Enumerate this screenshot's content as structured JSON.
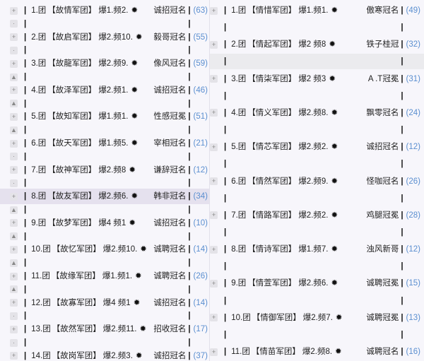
{
  "separator": "|",
  "star_icon": "✹",
  "left_panel": {
    "rows": [
      {
        "rank": "1.团",
        "name": "【故情军团】",
        "stats": "爆1.频2.",
        "title": "诚招冠名",
        "count": "(63)",
        "gap_icon": "dot"
      },
      {
        "rank": "2.团",
        "name": "【故启军团】",
        "stats": "爆2.频10.",
        "title": "毅哥冠名",
        "count": "(55)",
        "gap_icon": "dot"
      },
      {
        "rank": "3.团",
        "name": "【故龍军团】",
        "stats": "爆2.频9.",
        "title": "像风冠名",
        "count": "(59)",
        "gap_icon": "lock"
      },
      {
        "rank": "4.团",
        "name": "【故泽军团】",
        "stats": "爆2.频1.",
        "title": "诚招冠名",
        "count": "(46)",
        "gap_icon": "lock"
      },
      {
        "rank": "5.团",
        "name": "【故知军团】",
        "stats": "爆1.频1.",
        "title": "性感冠冕",
        "count": "(51)",
        "gap_icon": "lock"
      },
      {
        "rank": "6.团",
        "name": "【故天军团】",
        "stats": "爆1.频5.",
        "title": "宰相冠名",
        "count": "(21)",
        "gap_icon": "dot"
      },
      {
        "rank": "7.团",
        "name": "【故神军团】",
        "stats": "爆2.频8",
        "title": "谦辞冠名",
        "count": "(12)",
        "gap_icon": "dot"
      },
      {
        "rank": "8.团",
        "name": "【故友军团】",
        "stats": "爆2.频6.",
        "title": "韩非冠名",
        "count": "(34)",
        "gap_icon": "lock",
        "highlighted": true
      },
      {
        "rank": "9.团",
        "name": "【故梦军团】",
        "stats": "爆4 频1",
        "title": "诚招冠名",
        "count": "(10)",
        "gap_icon": "lock"
      },
      {
        "rank": "10.团",
        "name": "【故忆军团】",
        "stats": "爆2.频10.",
        "title": "诚聘冠名",
        "count": "(14)",
        "gap_icon": "lock"
      },
      {
        "rank": "11.团",
        "name": "【故缘军团】",
        "stats": "爆1.频1.",
        "title": "诚聘冠名",
        "count": "(26)",
        "gap_icon": "lock"
      },
      {
        "rank": "12.团",
        "name": "【故寡军团】",
        "stats": "爆4 频1",
        "title": "诚招冠名",
        "count": "(14)",
        "gap_icon": "dot"
      },
      {
        "rank": "13.团",
        "name": "【故然军团】",
        "stats": "爆2.频11.",
        "title": "招收冠名",
        "count": "(17)",
        "gap_icon": "dot"
      },
      {
        "rank": "14.团",
        "name": "【故岗军团】",
        "stats": "爆2.频3.",
        "title": "诚招冠名",
        "count": "(37)",
        "gap_icon": ""
      }
    ]
  },
  "right_panel": {
    "rows": [
      {
        "rank": "1.团",
        "name": "【情惜军团】",
        "stats": "爆1.频1.",
        "title": "傲寒冠名",
        "count": "(49)"
      },
      {
        "rank": "2.团",
        "name": "【情起军团】",
        "stats": "爆2 频8",
        "title": "铁子桂冠",
        "count": "(32)",
        "gap_highlighted": true
      },
      {
        "rank": "3.团",
        "name": "【情柒军团】",
        "stats": "爆2 频3",
        "title": "A .T冠冕",
        "count": "(31)"
      },
      {
        "rank": "4.团",
        "name": "【情义军团】",
        "stats": "爆2.频8.",
        "title": "飘零冠名",
        "count": "(24)"
      },
      {
        "rank": "5.团",
        "name": "【情芯军团】",
        "stats": "爆2.频2.",
        "title": "诚招冠名",
        "count": "(12)"
      },
      {
        "rank": "6.团",
        "name": "【情然军团】",
        "stats": "爆2.频9.",
        "title": "怪咖冠名",
        "count": "(26)"
      },
      {
        "rank": "7.团",
        "name": "【情路军团】",
        "stats": "爆2.频2.",
        "title": "鸡腿冠冕",
        "count": "(28)"
      },
      {
        "rank": "8.团",
        "name": "【情诗军团】",
        "stats": "爆1.频7.",
        "title": "浊风新哥",
        "count": "(12)"
      },
      {
        "rank": "9.团",
        "name": "【情萱军团】",
        "stats": "爆2.频6.",
        "title": "诚聘冠冕",
        "count": "(15)"
      },
      {
        "rank": "10.团",
        "name": "【情御军团】",
        "stats": "爆2.频7.",
        "title": "诚聘冠冕",
        "count": "(13)"
      },
      {
        "rank": "11.团",
        "name": "【情苗军团】",
        "stats": "爆2.频8.",
        "title": "诚聘冠名",
        "count": "(16)"
      }
    ]
  }
}
